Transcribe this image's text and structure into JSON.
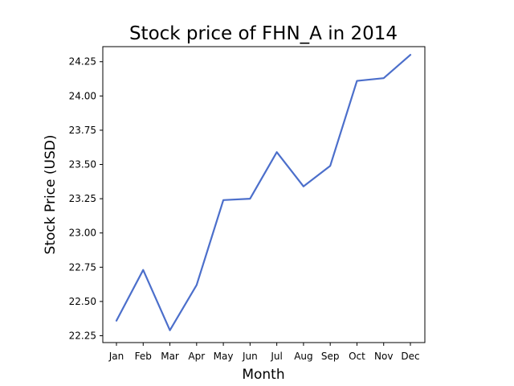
{
  "chart_data": {
    "type": "line",
    "title": "Stock price of FHN_A in 2014",
    "xlabel": "Month",
    "ylabel": "Stock Price (USD)",
    "categories": [
      "Jan",
      "Feb",
      "Mar",
      "Apr",
      "May",
      "Jun",
      "Jul",
      "Aug",
      "Sep",
      "Oct",
      "Nov",
      "Dec"
    ],
    "series": [
      {
        "values": [
          22.36,
          22.73,
          22.29,
          22.62,
          23.24,
          23.25,
          23.59,
          23.34,
          23.49,
          24.11,
          24.13,
          24.3
        ],
        "color": "#4c6fcb"
      }
    ],
    "yticks": [
      "22.25",
      "22.50",
      "22.75",
      "23.00",
      "23.25",
      "23.50",
      "23.75",
      "24.00",
      "24.25"
    ],
    "ylim": [
      22.2,
      24.36
    ],
    "grid": false,
    "legend": "none"
  }
}
